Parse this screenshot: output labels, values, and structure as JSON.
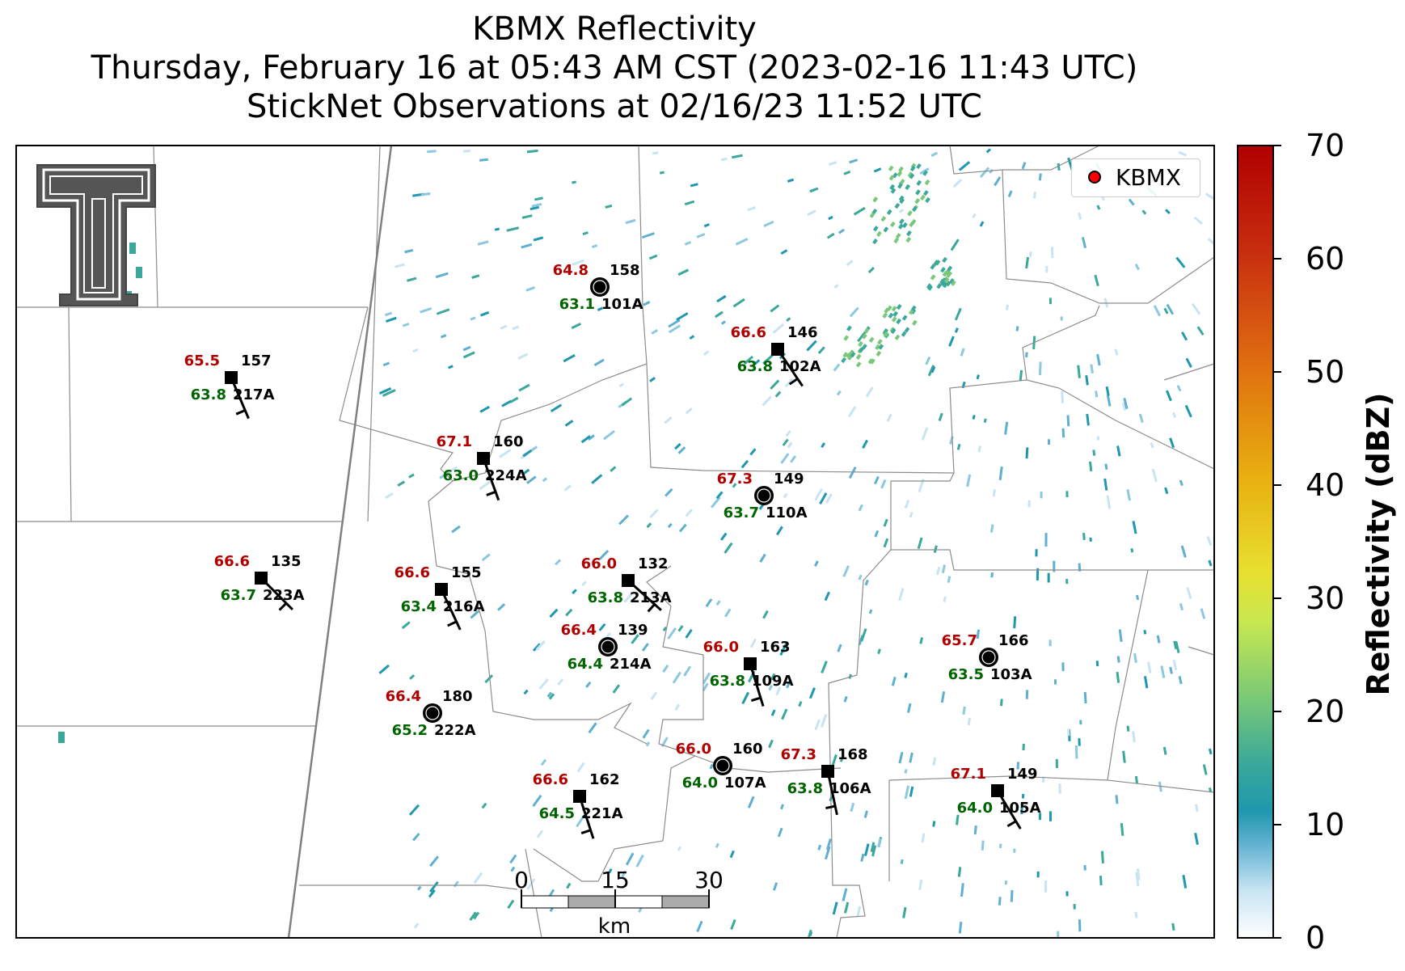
{
  "title": {
    "line1": "KBMX Reflectivity",
    "line2": "Thursday, February 16 at 05:43 AM CST (2023-02-16 11:43 UTC)",
    "line3": "StickNet Observations at 02/16/23 11:52 UTC"
  },
  "legend": {
    "label": "KBMX",
    "marker_color": "#ff0000"
  },
  "colorbar": {
    "label": "Reflectivity (dBZ)",
    "min": 0,
    "max": 70,
    "ticks": [
      "0",
      "10",
      "20",
      "30",
      "40",
      "50",
      "60",
      "70"
    ],
    "colors": [
      "#ffffff",
      "#c8e4f2",
      "#5fb0d0",
      "#1f98ad",
      "#3aa89a",
      "#78c878",
      "#c8e850",
      "#e8e030",
      "#e8b010",
      "#e07010",
      "#c83010",
      "#b00000"
    ]
  },
  "scalebar": {
    "ticks": [
      "0",
      "15",
      "30"
    ],
    "unit": "km"
  },
  "logo": {
    "name": "Texas Tech double-T logo"
  },
  "stations": [
    {
      "id": "101A",
      "temp": "64.8",
      "dew": "63.1",
      "dir": "158",
      "marker": "circle"
    },
    {
      "id": "102A",
      "temp": "66.6",
      "dew": "63.8",
      "dir": "146",
      "marker": "square"
    },
    {
      "id": "217A",
      "temp": "65.5",
      "dew": "63.8",
      "dir": "157",
      "marker": "square"
    },
    {
      "id": "224A",
      "temp": "67.1",
      "dew": "63.0",
      "dir": "160",
      "marker": "square"
    },
    {
      "id": "110A",
      "temp": "67.3",
      "dew": "63.7",
      "dir": "149",
      "marker": "circle"
    },
    {
      "id": "223A",
      "temp": "66.6",
      "dew": "63.7",
      "dir": "135",
      "marker": "square"
    },
    {
      "id": "216A",
      "temp": "66.6",
      "dew": "63.4",
      "dir": "155",
      "marker": "square"
    },
    {
      "id": "213A",
      "temp": "66.0",
      "dew": "63.8",
      "dir": "132",
      "marker": "square"
    },
    {
      "id": "214A",
      "temp": "66.4",
      "dew": "64.4",
      "dir": "139",
      "marker": "circle"
    },
    {
      "id": "109A",
      "temp": "66.0",
      "dew": "63.8",
      "dir": "163",
      "marker": "square"
    },
    {
      "id": "103A",
      "temp": "65.7",
      "dew": "63.5",
      "dir": "166",
      "marker": "circle"
    },
    {
      "id": "222A",
      "temp": "66.4",
      "dew": "65.2",
      "dir": "180",
      "marker": "circle"
    },
    {
      "id": "107A",
      "temp": "66.0",
      "dew": "64.0",
      "dir": "160",
      "marker": "circle"
    },
    {
      "id": "106A",
      "temp": "67.3",
      "dew": "63.8",
      "dir": "168",
      "marker": "square"
    },
    {
      "id": "221A",
      "temp": "66.6",
      "dew": "64.5",
      "dir": "162",
      "marker": "square"
    },
    {
      "id": "105A",
      "temp": "67.1",
      "dew": "64.0",
      "dir": "149",
      "marker": "square"
    }
  ]
}
